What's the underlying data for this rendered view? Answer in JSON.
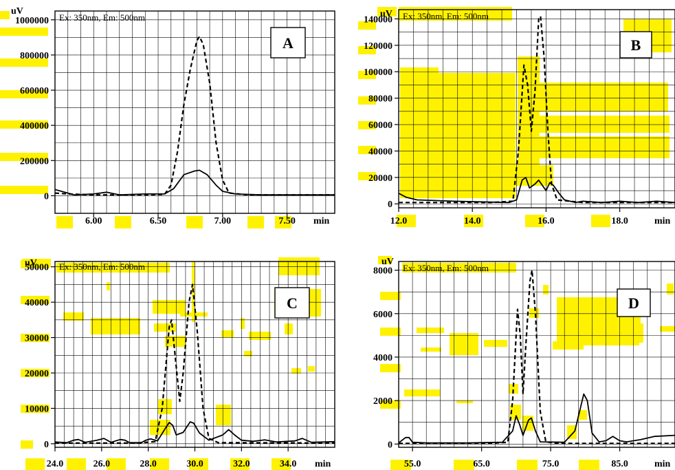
{
  "colors": {
    "highlight": "#fff200",
    "line": "#000000",
    "grid": "#000000",
    "background": "#ffffff"
  },
  "chart_data": [
    {
      "type": "line",
      "panel_label": "A",
      "legend_text": "Ex: 350nm, Em: 500nm",
      "ylabel": "uV",
      "xlabel": "min",
      "xlim": [
        5.7,
        7.87
      ],
      "ylim": [
        -100000,
        1050000
      ],
      "xticks": [
        6.0,
        6.5,
        7.0,
        7.5
      ],
      "xtick_labels": [
        "6.00",
        "6.50",
        "7.00",
        "7.50"
      ],
      "yticks": [
        0,
        200000,
        400000,
        600000,
        800000,
        1000000
      ],
      "ytick_labels": [
        "0",
        "200000",
        "400000",
        "600000",
        "800000",
        "1000000"
      ],
      "series": [
        {
          "style": "dashed",
          "points": [
            [
              5.7,
              15000
            ],
            [
              5.8,
              10000
            ],
            [
              6.0,
              5000
            ],
            [
              6.2,
              5000
            ],
            [
              6.4,
              5000
            ],
            [
              6.55,
              8000
            ],
            [
              6.6,
              60000
            ],
            [
              6.65,
              250000
            ],
            [
              6.7,
              520000
            ],
            [
              6.75,
              720000
            ],
            [
              6.8,
              880000
            ],
            [
              6.82,
              905000
            ],
            [
              6.85,
              860000
            ],
            [
              6.9,
              640000
            ],
            [
              6.95,
              300000
            ],
            [
              7.0,
              90000
            ],
            [
              7.05,
              15000
            ],
            [
              7.2,
              5000
            ],
            [
              7.5,
              5000
            ],
            [
              7.87,
              5000
            ]
          ]
        },
        {
          "style": "solid",
          "points": [
            [
              5.7,
              35000
            ],
            [
              5.75,
              25000
            ],
            [
              5.85,
              5000
            ],
            [
              6.0,
              10000
            ],
            [
              6.1,
              20000
            ],
            [
              6.2,
              5000
            ],
            [
              6.4,
              10000
            ],
            [
              6.55,
              10000
            ],
            [
              6.62,
              40000
            ],
            [
              6.7,
              120000
            ],
            [
              6.78,
              140000
            ],
            [
              6.82,
              145000
            ],
            [
              6.88,
              120000
            ],
            [
              6.95,
              60000
            ],
            [
              7.0,
              25000
            ],
            [
              7.1,
              10000
            ],
            [
              7.3,
              5000
            ],
            [
              7.5,
              5000
            ],
            [
              7.87,
              5000
            ]
          ]
        }
      ]
    },
    {
      "type": "line",
      "panel_label": "B",
      "legend_text": "Ex: 350nm, Em: 500nm",
      "ylabel": "uV",
      "xlabel": "min",
      "xlim": [
        12.0,
        19.5
      ],
      "ylim": [
        -3000,
        147000
      ],
      "xticks": [
        12.0,
        14.0,
        16.0,
        18.0
      ],
      "xtick_labels": [
        "12.0",
        "14.0",
        "16.0",
        "18.0"
      ],
      "yticks": [
        0,
        20000,
        40000,
        60000,
        80000,
        100000,
        120000,
        140000
      ],
      "ytick_labels": [
        "0",
        "20000",
        "40000",
        "60000",
        "80000",
        "100000",
        "120000",
        "140000"
      ],
      "series": [
        {
          "style": "dashed",
          "points": [
            [
              12.0,
              1000
            ],
            [
              13.0,
              1000
            ],
            [
              14.5,
              1000
            ],
            [
              15.1,
              2000
            ],
            [
              15.25,
              40000
            ],
            [
              15.4,
              105000
            ],
            [
              15.5,
              90000
            ],
            [
              15.6,
              55000
            ],
            [
              15.7,
              85000
            ],
            [
              15.8,
              140000
            ],
            [
              15.85,
              142000
            ],
            [
              15.95,
              110000
            ],
            [
              16.05,
              55000
            ],
            [
              16.15,
              15000
            ],
            [
              16.3,
              3000
            ],
            [
              17.0,
              1000
            ],
            [
              19.5,
              1000
            ]
          ]
        },
        {
          "style": "solid",
          "points": [
            [
              12.0,
              8000
            ],
            [
              12.2,
              5000
            ],
            [
              12.5,
              3000
            ],
            [
              13.5,
              2000
            ],
            [
              15.0,
              1000
            ],
            [
              15.2,
              3000
            ],
            [
              15.35,
              18000
            ],
            [
              15.45,
              20000
            ],
            [
              15.55,
              12000
            ],
            [
              15.7,
              15000
            ],
            [
              15.8,
              18000
            ],
            [
              15.9,
              14000
            ],
            [
              16.0,
              10000
            ],
            [
              16.1,
              16000
            ],
            [
              16.2,
              14000
            ],
            [
              16.35,
              8000
            ],
            [
              16.5,
              3000
            ],
            [
              16.8,
              1000
            ],
            [
              17.0,
              2000
            ],
            [
              17.5,
              1000
            ],
            [
              18.0,
              2000
            ],
            [
              18.5,
              1000
            ],
            [
              19.0,
              2000
            ],
            [
              19.5,
              1000
            ]
          ]
        }
      ]
    },
    {
      "type": "line",
      "panel_label": "C",
      "legend_text": "Ex: 350nm, Em: 500nm",
      "ylabel": "uV",
      "xlabel": "min",
      "xlim": [
        24.0,
        36.0
      ],
      "ylim": [
        -1000,
        51500
      ],
      "xticks": [
        24.0,
        26.0,
        28.0,
        30.0,
        32.0,
        34.0
      ],
      "xtick_labels": [
        "24.0",
        "26.0",
        "28.0",
        "30.0",
        "32.0",
        "34.0"
      ],
      "yticks": [
        0,
        10000,
        20000,
        30000,
        40000,
        50000
      ],
      "ytick_labels": [
        "0",
        "10000",
        "20000",
        "30000",
        "40000",
        "50000"
      ],
      "series": [
        {
          "style": "dashed",
          "points": [
            [
              24.0,
              200
            ],
            [
              27.5,
              200
            ],
            [
              28.3,
              600
            ],
            [
              28.6,
              10000
            ],
            [
              28.9,
              33000
            ],
            [
              29.0,
              35000
            ],
            [
              29.15,
              25000
            ],
            [
              29.35,
              12000
            ],
            [
              29.5,
              20000
            ],
            [
              29.75,
              40000
            ],
            [
              29.9,
              45000
            ],
            [
              30.1,
              32000
            ],
            [
              30.35,
              10000
            ],
            [
              30.6,
              1500
            ],
            [
              31.0,
              300
            ],
            [
              36.0,
              200
            ]
          ]
        },
        {
          "style": "solid",
          "points": [
            [
              24.0,
              500
            ],
            [
              24.5,
              300
            ],
            [
              24.8,
              1000
            ],
            [
              25.0,
              1200
            ],
            [
              25.3,
              400
            ],
            [
              25.8,
              1000
            ],
            [
              26.1,
              1500
            ],
            [
              26.4,
              400
            ],
            [
              26.8,
              1200
            ],
            [
              27.0,
              1000
            ],
            [
              27.2,
              300
            ],
            [
              27.7,
              300
            ],
            [
              27.9,
              1000
            ],
            [
              28.1,
              1400
            ],
            [
              28.4,
              800
            ],
            [
              28.7,
              4000
            ],
            [
              28.9,
              6000
            ],
            [
              29.05,
              5200
            ],
            [
              29.2,
              2500
            ],
            [
              29.5,
              3200
            ],
            [
              29.8,
              6200
            ],
            [
              29.95,
              5800
            ],
            [
              30.2,
              3000
            ],
            [
              30.6,
              1000
            ],
            [
              31.2,
              2500
            ],
            [
              31.45,
              4000
            ],
            [
              31.7,
              2500
            ],
            [
              32.0,
              1000
            ],
            [
              32.5,
              700
            ],
            [
              33.0,
              1100
            ],
            [
              33.5,
              500
            ],
            [
              34.3,
              800
            ],
            [
              34.6,
              1500
            ],
            [
              35.0,
              400
            ],
            [
              36.0,
              600
            ]
          ]
        }
      ]
    },
    {
      "type": "line",
      "panel_label": "D",
      "legend_text": "Ex: 350nm, Em: 500nm",
      "ylabel": "uV",
      "xlabel": "min",
      "xlim": [
        53.0,
        93.0
      ],
      "ylim": [
        -150,
        8400
      ],
      "xticks": [
        55.0,
        65.0,
        75.0,
        85.0
      ],
      "xtick_labels": [
        "55.0",
        "65.0",
        "75.0",
        "85.0"
      ],
      "yticks": [
        0,
        2000,
        4000,
        6000,
        8000
      ],
      "ytick_labels": [
        "0",
        "2000",
        "4000",
        "6000",
        "8000"
      ],
      "series": [
        {
          "style": "dashed",
          "points": [
            [
              53.0,
              30
            ],
            [
              60.0,
              30
            ],
            [
              66.0,
              30
            ],
            [
              68.8,
              80
            ],
            [
              69.5,
              2000
            ],
            [
              70.2,
              6200
            ],
            [
              70.6,
              5000
            ],
            [
              71.0,
              2300
            ],
            [
              71.4,
              4500
            ],
            [
              72.0,
              7500
            ],
            [
              72.3,
              8000
            ],
            [
              72.8,
              6000
            ],
            [
              73.5,
              1500
            ],
            [
              74.3,
              100
            ],
            [
              76.0,
              30
            ],
            [
              93.0,
              30
            ]
          ]
        },
        {
          "style": "solid",
          "points": [
            [
              53.0,
              50
            ],
            [
              54.0,
              300
            ],
            [
              54.5,
              300
            ],
            [
              55.0,
              80
            ],
            [
              57.0,
              50
            ],
            [
              63.0,
              50
            ],
            [
              68.0,
              80
            ],
            [
              69.5,
              600
            ],
            [
              70.0,
              1300
            ],
            [
              70.5,
              900
            ],
            [
              71.0,
              400
            ],
            [
              71.8,
              1100
            ],
            [
              72.2,
              1200
            ],
            [
              72.8,
              600
            ],
            [
              73.5,
              100
            ],
            [
              77.0,
              80
            ],
            [
              78.5,
              600
            ],
            [
              79.8,
              2300
            ],
            [
              80.3,
              2000
            ],
            [
              81.0,
              500
            ],
            [
              82.0,
              100
            ],
            [
              83.0,
              150
            ],
            [
              84.0,
              350
            ],
            [
              85.0,
              150
            ],
            [
              86.0,
              100
            ],
            [
              88.0,
              200
            ],
            [
              90.0,
              350
            ],
            [
              93.0,
              400
            ]
          ]
        }
      ]
    }
  ]
}
